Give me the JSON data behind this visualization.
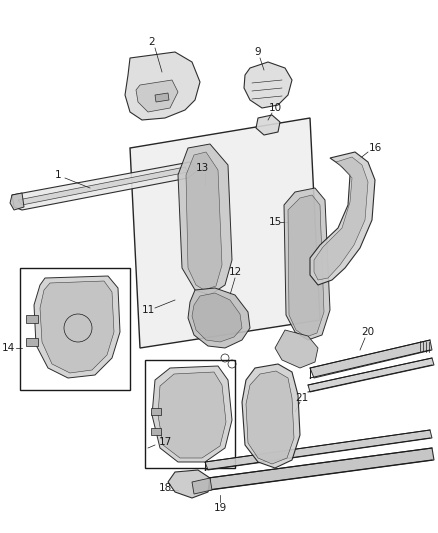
{
  "background_color": "#ffffff",
  "line_color": "#1a1a1a",
  "fig_width": 4.39,
  "fig_height": 5.33,
  "dpi": 100,
  "label_fontsize": 7.5
}
